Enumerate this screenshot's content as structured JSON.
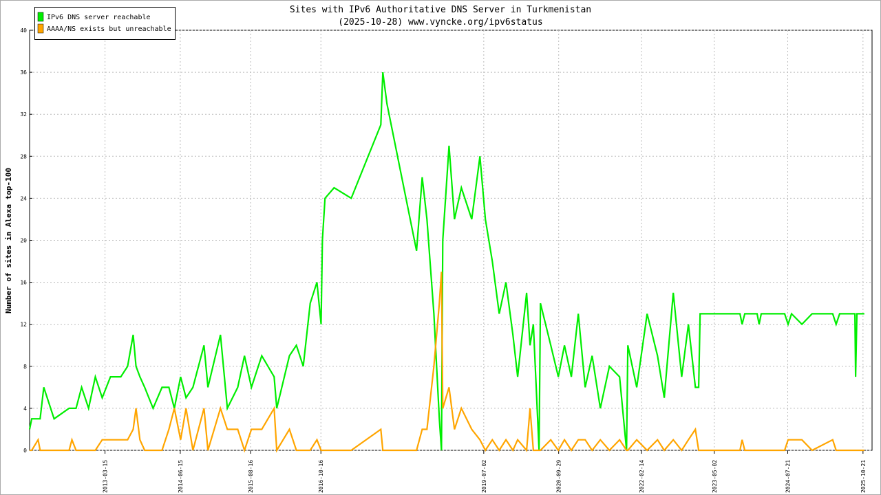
{
  "chart_data": {
    "type": "line",
    "title": "Sites with IPv6 Authoritative DNS Server in Turkmenistan",
    "subtitle": "(2025-10-28) www.vyncke.org/ipv6status",
    "y_label": "Number of sites in Alexa top-100",
    "legend": "upper left",
    "grid": true,
    "ylim": [
      0,
      40
    ],
    "yticks": [
      0,
      4,
      8,
      12,
      16,
      20,
      24,
      28,
      32,
      36,
      40
    ],
    "xlim": [
      "2011-12-13",
      "2025-12-15"
    ],
    "xticks": [
      "2013-03-15",
      "2014-06-15",
      "2015-08-16",
      "2016-10-16",
      "2019-07-02",
      "2020-09-29",
      "2022-02-14",
      "2023-05-02",
      "2024-07-21",
      "2025-10-21"
    ],
    "x": [
      "2011-12-13",
      "2011-12-26",
      "2012-02-03",
      "2012-02-15",
      "2012-03-08",
      "2012-05-10",
      "2012-08-09",
      "2012-08-26",
      "2012-09-20",
      "2012-10-24",
      "2012-12-05",
      "2013-01-15",
      "2013-02-26",
      "2013-04-17",
      "2013-06-19",
      "2013-07-30",
      "2013-09-02",
      "2013-09-19",
      "2013-10-13",
      "2013-11-11",
      "2014-01-01",
      "2014-02-24",
      "2014-04-07",
      "2014-05-10",
      "2014-06-17",
      "2014-07-20",
      "2014-08-31",
      "2014-11-06",
      "2014-11-30",
      "2015-02-14",
      "2015-03-28",
      "2015-05-30",
      "2015-07-10",
      "2015-08-21",
      "2015-10-23",
      "2016-01-06",
      "2016-01-22",
      "2016-04-08",
      "2016-05-20",
      "2016-07-01",
      "2016-08-12",
      "2016-09-22",
      "2016-10-17",
      "2016-10-25",
      "2016-11-10",
      "2017-01-04",
      "2017-04-18",
      "2017-10-15",
      "2017-10-27",
      "2017-11-21",
      "2018-05-20",
      "2018-06-23",
      "2018-07-22",
      "2018-09-02",
      "2018-10-05",
      "2018-10-18",
      "2018-10-26",
      "2018-12-03",
      "2019-01-05",
      "2019-02-16",
      "2019-04-20",
      "2019-06-09",
      "2019-07-12",
      "2019-08-23",
      "2019-10-04",
      "2019-11-14",
      "2019-12-26",
      "2020-01-24",
      "2020-03-18",
      "2020-04-08",
      "2020-04-28",
      "2020-06-02",
      "2020-06-10",
      "2020-08-12",
      "2020-09-27",
      "2020-11-03",
      "2020-12-15",
      "2021-01-26",
      "2021-03-09",
      "2021-04-20",
      "2021-06-09",
      "2021-08-03",
      "2021-10-04",
      "2021-11-15",
      "2021-11-23",
      "2022-01-16",
      "2022-03-20",
      "2022-05-22",
      "2022-07-02",
      "2022-08-26",
      "2022-10-16",
      "2022-11-26",
      "2023-01-07",
      "2023-01-27",
      "2023-02-05",
      "2023-10-05",
      "2023-10-18",
      "2023-11-03",
      "2024-01-17",
      "2024-01-29",
      "2024-02-11",
      "2024-07-02",
      "2024-07-23",
      "2024-08-13",
      "2024-10-15",
      "2024-12-16",
      "2025-04-20",
      "2025-05-11",
      "2025-06-01",
      "2025-09-02",
      "2025-09-06",
      "2025-09-14",
      "2025-10-29"
    ],
    "series": [
      {
        "name": "IPv6 DNS server reachable",
        "color": "#00ee00",
        "values": [
          2,
          3,
          3,
          3,
          6,
          3,
          4,
          4,
          4,
          6,
          4,
          7,
          5,
          7,
          7,
          8,
          11,
          8,
          7,
          6,
          4,
          6,
          6,
          4,
          7,
          5,
          6,
          10,
          6,
          11,
          4,
          6,
          9,
          6,
          9,
          7,
          4,
          9,
          10,
          8,
          14,
          16,
          12,
          20,
          24,
          25,
          24,
          31,
          36,
          33,
          19,
          26,
          22,
          13,
          3,
          0,
          20,
          29,
          22,
          25,
          22,
          28,
          22,
          18,
          13,
          16,
          11,
          7,
          15,
          10,
          12,
          0,
          14,
          10,
          7,
          10,
          7,
          13,
          6,
          9,
          4,
          8,
          7,
          0,
          10,
          6,
          13,
          9,
          5,
          15,
          7,
          12,
          6,
          6,
          13,
          13,
          12,
          13,
          13,
          12,
          13,
          13,
          12,
          13,
          12,
          13,
          13,
          12,
          13,
          13,
          7,
          13,
          13
        ]
      },
      {
        "name": "AAAA/NS exists but unreachable",
        "color": "#ffa500",
        "values": [
          0,
          0,
          1,
          0,
          0,
          0,
          0,
          1,
          0,
          0,
          0,
          0,
          1,
          1,
          1,
          1,
          2,
          4,
          1,
          0,
          0,
          0,
          2,
          4,
          1,
          4,
          0,
          4,
          0,
          4,
          2,
          2,
          0,
          2,
          2,
          4,
          0,
          2,
          0,
          0,
          0,
          1,
          0,
          0,
          0,
          0,
          0,
          2,
          0,
          0,
          0,
          2,
          2,
          8,
          14,
          17,
          4,
          6,
          2,
          4,
          2,
          1,
          0,
          1,
          0,
          1,
          0,
          1,
          0,
          4,
          0,
          0,
          0,
          1,
          0,
          1,
          0,
          1,
          1,
          0,
          1,
          0,
          1,
          0,
          0,
          1,
          0,
          1,
          0,
          1,
          0,
          1,
          2,
          0,
          0,
          0,
          1,
          0,
          0,
          0,
          0,
          0,
          1,
          1,
          1,
          0,
          1,
          0,
          0,
          0,
          0,
          0,
          0
        ]
      }
    ]
  }
}
